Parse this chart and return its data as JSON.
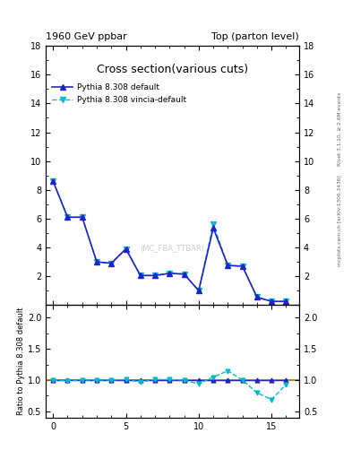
{
  "title_left": "1960 GeV ppbar",
  "title_right": "Top (parton level)",
  "main_title": "Cross section",
  "main_title_suffix": "(various cuts)",
  "right_label_top": "Rivet 3.1.10, ≥ 2.6M events",
  "right_label_bottom": "mcplots.cern.ch [arXiv:1306.3436]",
  "watermark": "(MC_FBA_TTBAR)",
  "ylabel_ratio": "Ratio to Pythia 8.308 default",
  "legend1": "Pythia 8.308 default",
  "legend2": "Pythia 8.308 vincia-default",
  "x_main": [
    0,
    1,
    2,
    3,
    4,
    5,
    6,
    7,
    8,
    9,
    10,
    11,
    12,
    13,
    14,
    15,
    16
  ],
  "y_default": [
    8.6,
    6.1,
    6.1,
    3.0,
    2.9,
    3.9,
    2.05,
    2.05,
    2.2,
    2.15,
    1.0,
    5.35,
    2.75,
    2.7,
    0.55,
    0.25,
    0.25
  ],
  "y_vincia": [
    8.6,
    6.1,
    6.1,
    3.0,
    2.9,
    3.9,
    2.05,
    2.05,
    2.2,
    2.15,
    1.0,
    5.6,
    2.75,
    2.7,
    0.55,
    0.25,
    0.25
  ],
  "x_ratio": [
    0,
    1,
    2,
    3,
    4,
    5,
    6,
    7,
    8,
    9,
    10,
    11,
    12,
    13,
    14,
    15,
    16
  ],
  "y_ratio": [
    1.0,
    0.99,
    1.0,
    1.0,
    1.0,
    1.01,
    0.97,
    1.01,
    1.01,
    1.0,
    0.94,
    1.05,
    1.15,
    1.0,
    0.8,
    0.69,
    0.93
  ],
  "color_default": "#2222cc",
  "color_vincia": "#00bbcc",
  "color_ratio_line": "#808000",
  "ylim_main": [
    0,
    18
  ],
  "ylim_ratio": [
    0.4,
    2.2
  ],
  "yticks_main": [
    0,
    2,
    4,
    6,
    8,
    10,
    12,
    14,
    16,
    18
  ],
  "yticks_ratio": [
    0.5,
    1.0,
    1.5,
    2.0
  ],
  "xlim": [
    -0.5,
    16.9
  ],
  "xticks": [
    0,
    5,
    10,
    15
  ]
}
